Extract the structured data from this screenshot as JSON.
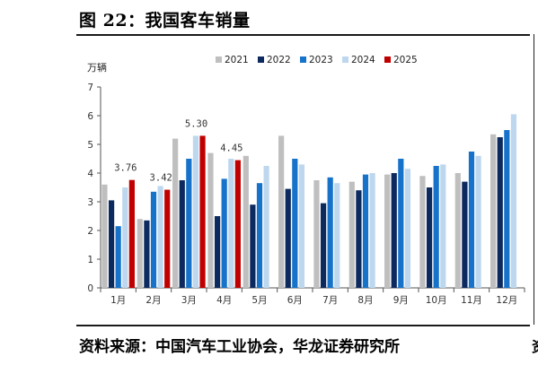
{
  "figure": {
    "title": "图 22：我国客车销量",
    "source": "资料来源：中国汽车工业协会，华龙证券研究所",
    "edge_glyph": "资"
  },
  "colors": {
    "2021": "#bfbfbf",
    "2022": "#0c2a5e",
    "2023": "#1773c9",
    "2024": "#bdd7ee",
    "2025": "#c00000",
    "axis": "#555555"
  },
  "chart_data": {
    "type": "bar",
    "title": "",
    "ylabel": "万辆",
    "xlabel": "",
    "ylim": [
      0,
      7
    ],
    "yticks": [
      0,
      1,
      2,
      3,
      4,
      5,
      6,
      7
    ],
    "grid": false,
    "legend_position": "top",
    "categories": [
      "1月",
      "2月",
      "3月",
      "4月",
      "5月",
      "6月",
      "7月",
      "8月",
      "9月",
      "10月",
      "11月",
      "12月"
    ],
    "series": [
      {
        "name": "2021",
        "values": [
          3.6,
          2.4,
          5.2,
          4.7,
          4.6,
          5.3,
          3.75,
          3.7,
          3.95,
          3.9,
          4.0,
          5.35
        ]
      },
      {
        "name": "2022",
        "values": [
          3.05,
          2.35,
          3.75,
          2.5,
          2.9,
          3.45,
          2.95,
          3.4,
          4.0,
          3.5,
          3.7,
          5.25
        ]
      },
      {
        "name": "2023",
        "values": [
          2.15,
          3.35,
          4.5,
          3.8,
          3.65,
          4.5,
          3.85,
          3.95,
          4.5,
          4.25,
          4.75,
          5.5
        ]
      },
      {
        "name": "2024",
        "values": [
          3.5,
          3.55,
          5.3,
          4.5,
          4.25,
          4.3,
          3.65,
          4.0,
          4.15,
          4.3,
          4.6,
          6.05
        ]
      },
      {
        "name": "2025",
        "values": [
          3.76,
          3.42,
          5.3,
          4.45,
          null,
          null,
          null,
          null,
          null,
          null,
          null,
          null
        ]
      }
    ],
    "data_labels": [
      {
        "series": "2025",
        "category": "1月",
        "text": "3.76"
      },
      {
        "series": "2025",
        "category": "2月",
        "text": "3.42"
      },
      {
        "series": "2025",
        "category": "3月",
        "text": "5.30"
      },
      {
        "series": "2025",
        "category": "4月",
        "text": "4.45"
      }
    ]
  }
}
